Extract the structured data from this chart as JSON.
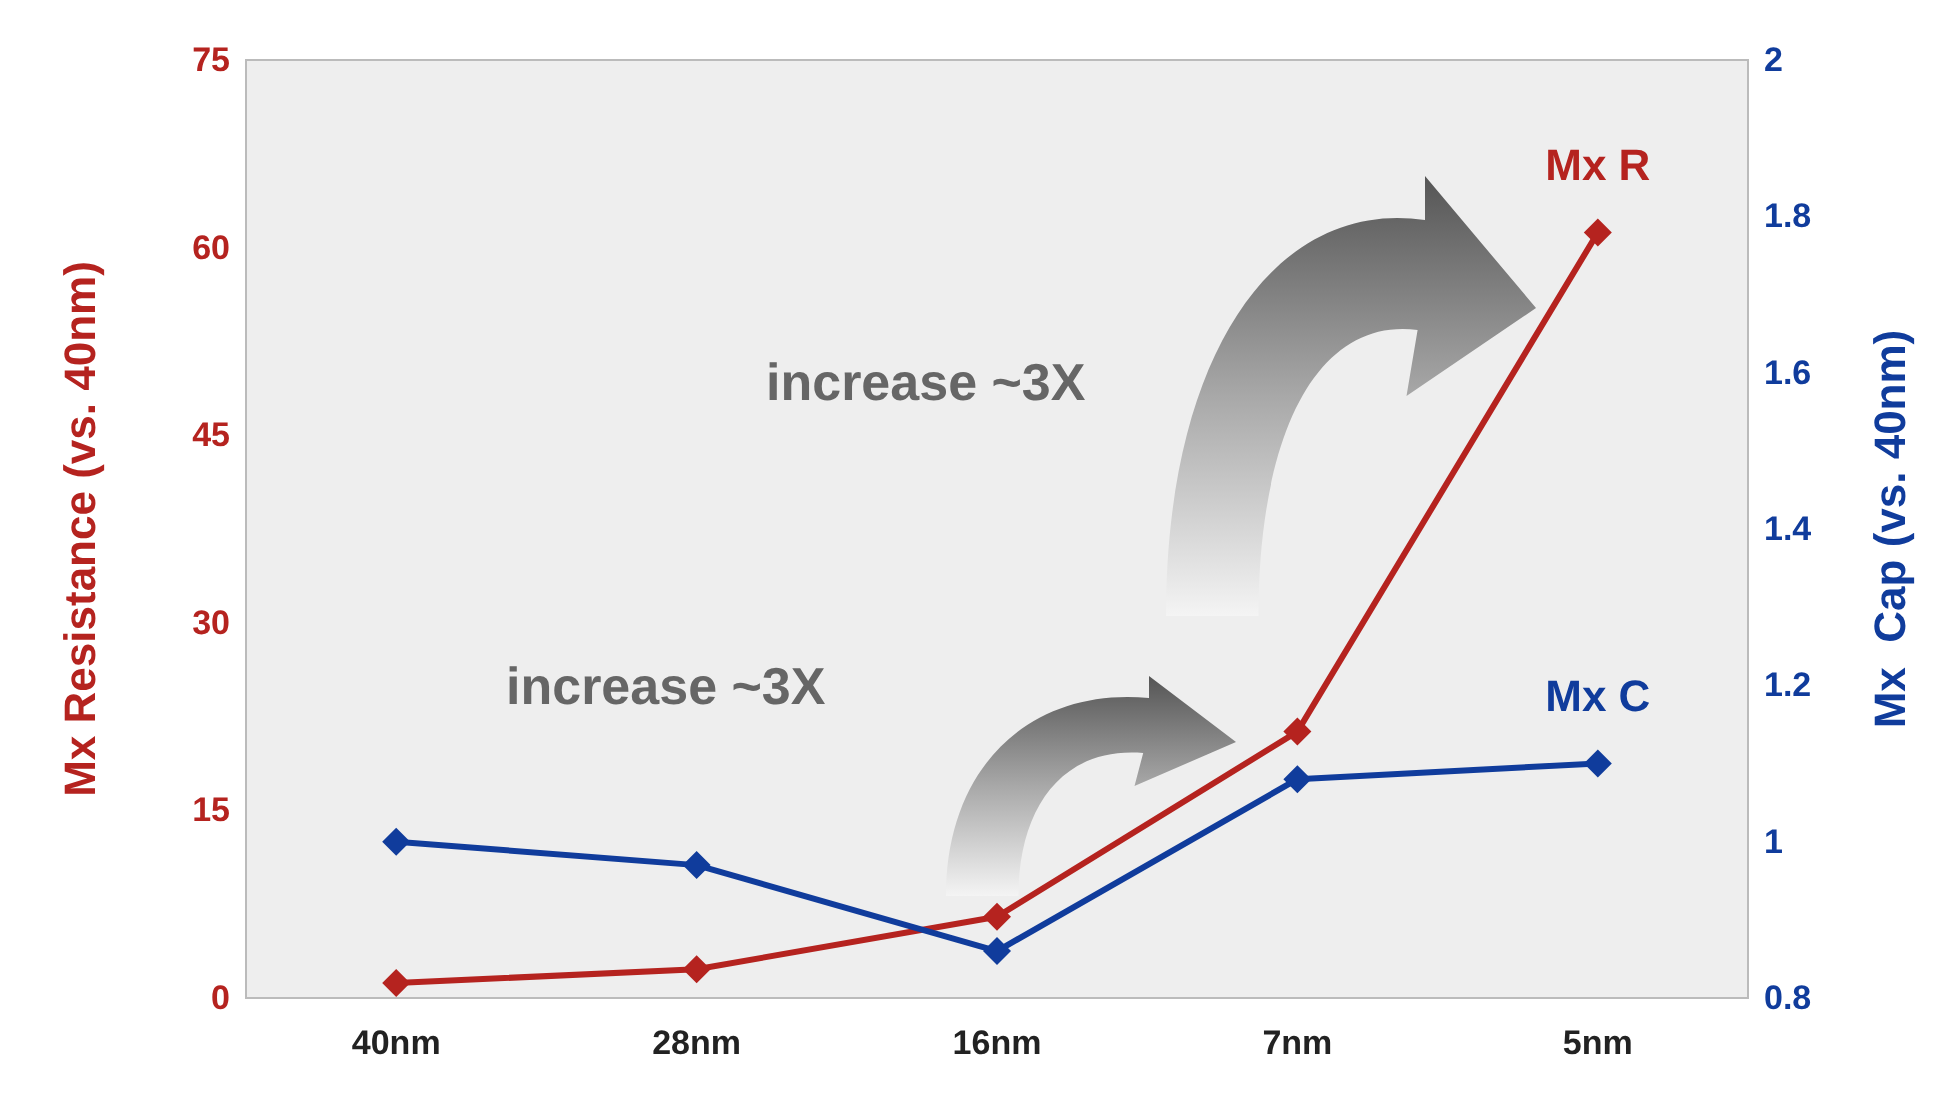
{
  "chart_data": {
    "type": "line",
    "categories": [
      "40nm",
      "28nm",
      "16nm",
      "7nm",
      "5nm"
    ],
    "series": [
      {
        "name": "Mx R",
        "color": "#b5231f",
        "values": [
          1.2,
          2.3,
          6.5,
          21.3,
          61.2
        ]
      },
      {
        "name": "Mx C",
        "color": "#103c9c",
        "values": [
          1.0,
          0.97,
          0.86,
          1.08,
          1.1
        ],
        "axis": "y2"
      }
    ],
    "ylabel": "Mx Resistance (vs. 40nm)",
    "y2label": "Mx  Cap (vs. 40nm)",
    "ylim": [
      0,
      75
    ],
    "yticks": [
      0,
      15,
      30,
      45,
      60,
      75
    ],
    "y2lim": [
      0.8,
      2
    ],
    "y2ticks": [
      0.8,
      1,
      1.2,
      1.4,
      1.6,
      1.8,
      2
    ],
    "annotations": [
      "increase ~3X",
      "increase ~3X"
    ],
    "marker": "diamond",
    "line_style": "solid",
    "grid": false
  }
}
